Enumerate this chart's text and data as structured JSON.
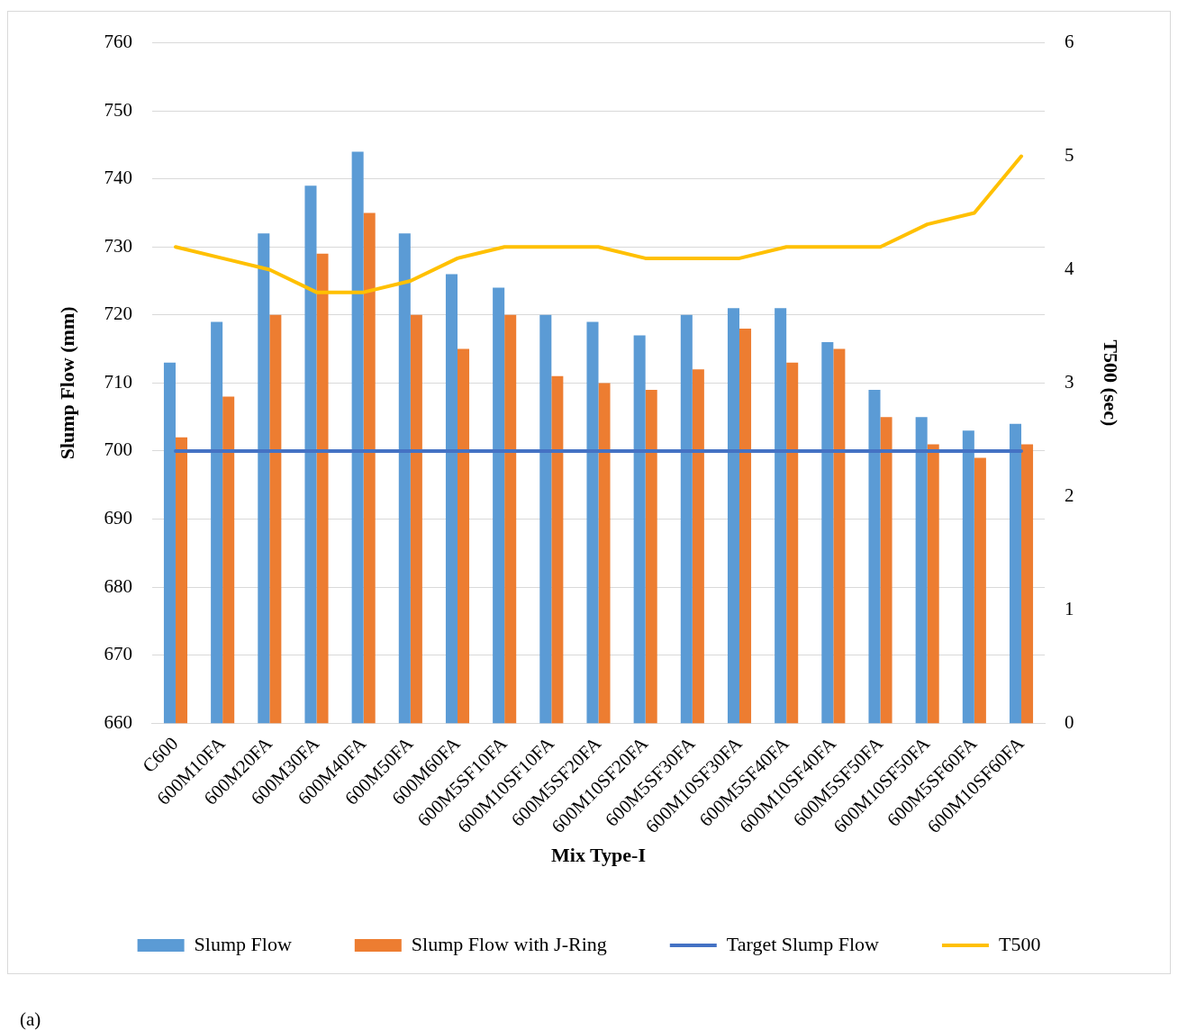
{
  "chart_data": {
    "type": "bar",
    "xlabel": "Mix Type-I",
    "ylabel": "Slump Flow (mm)",
    "y2label": "T500 (sec)",
    "categories": [
      "C600",
      "600M10FA",
      "600M20FA",
      "600M30FA",
      "600M40FA",
      "600M50FA",
      "600M60FA",
      "600M5SF10FA",
      "600M10SF10FA",
      "600M5SF20FA",
      "600M10SF20FA",
      "600M5SF30FA",
      "600M10SF30FA",
      "600M5SF40FA",
      "600M10SF40FA",
      "600M5SF50FA",
      "600M10SF50FA",
      "600M5SF60FA",
      "600M10SF60FA"
    ],
    "series": [
      {
        "name": "Slump Flow",
        "color": "#5b9bd5",
        "values": [
          713,
          719,
          732,
          739,
          744,
          732,
          726,
          724,
          720,
          719,
          717,
          720,
          721,
          721,
          716,
          709,
          705,
          703,
          704
        ]
      },
      {
        "name": "Slump Flow with J-Ring",
        "color": "#ed7d31",
        "values": [
          702,
          708,
          720,
          729,
          735,
          720,
          715,
          720,
          711,
          710,
          709,
          712,
          718,
          713,
          715,
          705,
          701,
          699,
          701
        ]
      },
      {
        "name": "Target Slump Flow",
        "type": "line",
        "color": "#4472c4",
        "values": [
          700,
          700,
          700,
          700,
          700,
          700,
          700,
          700,
          700,
          700,
          700,
          700,
          700,
          700,
          700,
          700,
          700,
          700,
          700
        ]
      },
      {
        "name": "T500",
        "type": "line",
        "axis": "y2",
        "color": "#ffc000",
        "values": [
          4.2,
          4.1,
          4.0,
          3.8,
          3.8,
          3.9,
          4.1,
          4.2,
          4.2,
          4.2,
          4.1,
          4.1,
          4.1,
          4.2,
          4.2,
          4.2,
          4.4,
          4.5,
          5.0
        ]
      }
    ],
    "ylim": [
      660,
      760
    ],
    "yticks": [
      660,
      670,
      680,
      690,
      700,
      710,
      720,
      730,
      740,
      750,
      760
    ],
    "y2lim": [
      0,
      6
    ],
    "y2ticks": [
      0,
      1,
      2,
      3,
      4,
      5,
      6
    ],
    "grid": "y",
    "legend": "bottom",
    "marker": "none",
    "line_style": "solid",
    "annotations": [
      "(a)"
    ]
  }
}
